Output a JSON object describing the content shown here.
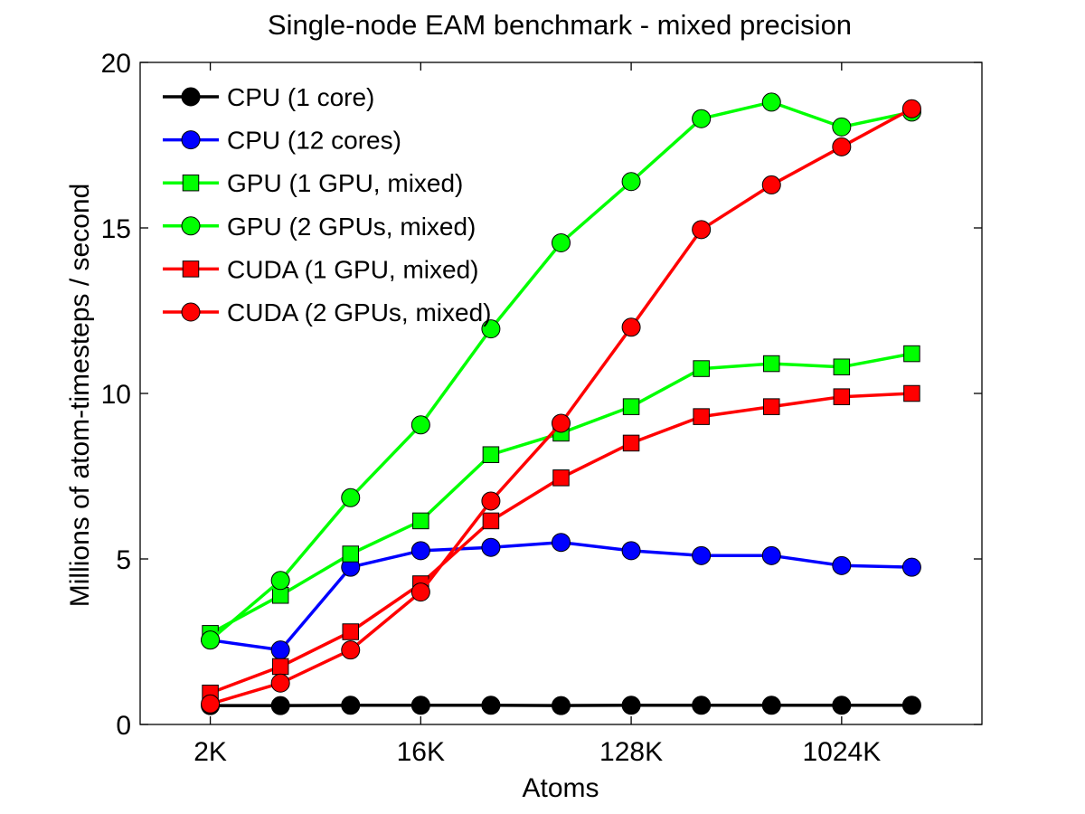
{
  "chart_data": {
    "type": "line",
    "title": "Single-node EAM benchmark - mixed precision",
    "xlabel": "Atoms",
    "ylabel": "Millions of atom-timesteps / second",
    "x_scale": "log2",
    "x": [
      2048,
      4096,
      8192,
      16384,
      32768,
      65536,
      131072,
      262144,
      524288,
      1048576,
      2097152
    ],
    "x_ticks": [
      {
        "value": 2048,
        "label": "2K"
      },
      {
        "value": 16384,
        "label": "16K"
      },
      {
        "value": 131072,
        "label": "128K"
      },
      {
        "value": 1048576,
        "label": "1024K"
      }
    ],
    "xlim": [
      1024,
      4194304
    ],
    "ylim": [
      0,
      20
    ],
    "y_ticks": [
      {
        "value": 0,
        "label": "0"
      },
      {
        "value": 5,
        "label": "5"
      },
      {
        "value": 10,
        "label": "10"
      },
      {
        "value": 15,
        "label": "15"
      },
      {
        "value": 20,
        "label": "20"
      }
    ],
    "grid": false,
    "legend_position": "top-left",
    "series": [
      {
        "name": "CPU (1 core)",
        "color": "#000000",
        "marker": "circle",
        "values": [
          0.57,
          0.57,
          0.58,
          0.58,
          0.58,
          0.57,
          0.58,
          0.58,
          0.58,
          0.58,
          0.58
        ]
      },
      {
        "name": "CPU (12 cores)",
        "color": "#0000ff",
        "marker": "circle",
        "values": [
          2.55,
          2.25,
          4.75,
          5.25,
          5.35,
          5.5,
          5.25,
          5.1,
          5.1,
          4.8,
          4.75
        ]
      },
      {
        "name": "GPU (1 GPU, mixed)",
        "color": "#00ff00",
        "marker": "square",
        "values": [
          2.75,
          3.9,
          5.15,
          6.15,
          8.15,
          8.8,
          9.6,
          10.75,
          10.9,
          10.8,
          11.2
        ]
      },
      {
        "name": "GPU (2 GPUs, mixed)",
        "color": "#00ff00",
        "marker": "circle",
        "values": [
          2.55,
          4.35,
          6.85,
          9.05,
          11.95,
          14.55,
          16.4,
          18.3,
          18.8,
          18.05,
          18.5
        ]
      },
      {
        "name": "CUDA (1 GPU, mixed)",
        "color": "#ff0000",
        "marker": "square",
        "values": [
          0.95,
          1.75,
          2.8,
          4.25,
          6.15,
          7.45,
          8.5,
          9.3,
          9.6,
          9.9,
          10.0
        ]
      },
      {
        "name": "CUDA (2 GPUs, mixed)",
        "color": "#ff0000",
        "marker": "circle",
        "values": [
          0.62,
          1.25,
          2.25,
          4.0,
          6.75,
          9.1,
          12.0,
          14.95,
          16.3,
          17.45,
          18.6
        ]
      }
    ]
  }
}
